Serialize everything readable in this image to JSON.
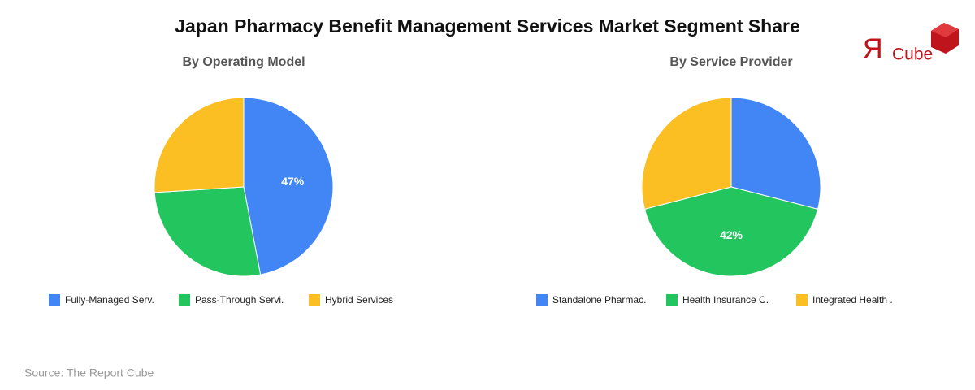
{
  "title": "Japan Pharmacy Benefit Management Services Market Segment Share",
  "logo": {
    "mark": "Я",
    "text": "Cube"
  },
  "source": "Source: The Report Cube",
  "chart_data": [
    {
      "type": "pie",
      "subtitle": "By Operating Model",
      "categories": [
        "Fully-Managed Serv.",
        "Pass-Through Servi.",
        "Hybrid Services"
      ],
      "values": [
        47,
        27,
        26
      ],
      "value_labels": [
        "47%",
        null,
        null
      ],
      "colors": [
        "#4285f4",
        "#22c55e",
        "#fbbf24"
      ]
    },
    {
      "type": "pie",
      "subtitle": "By Service Provider",
      "categories": [
        "Standalone Pharmac.",
        "Health Insurance C.",
        "Integrated Health ."
      ],
      "values": [
        29,
        42,
        29
      ],
      "value_labels": [
        null,
        "42%",
        null
      ],
      "colors": [
        "#4285f4",
        "#22c55e",
        "#fbbf24"
      ]
    }
  ]
}
